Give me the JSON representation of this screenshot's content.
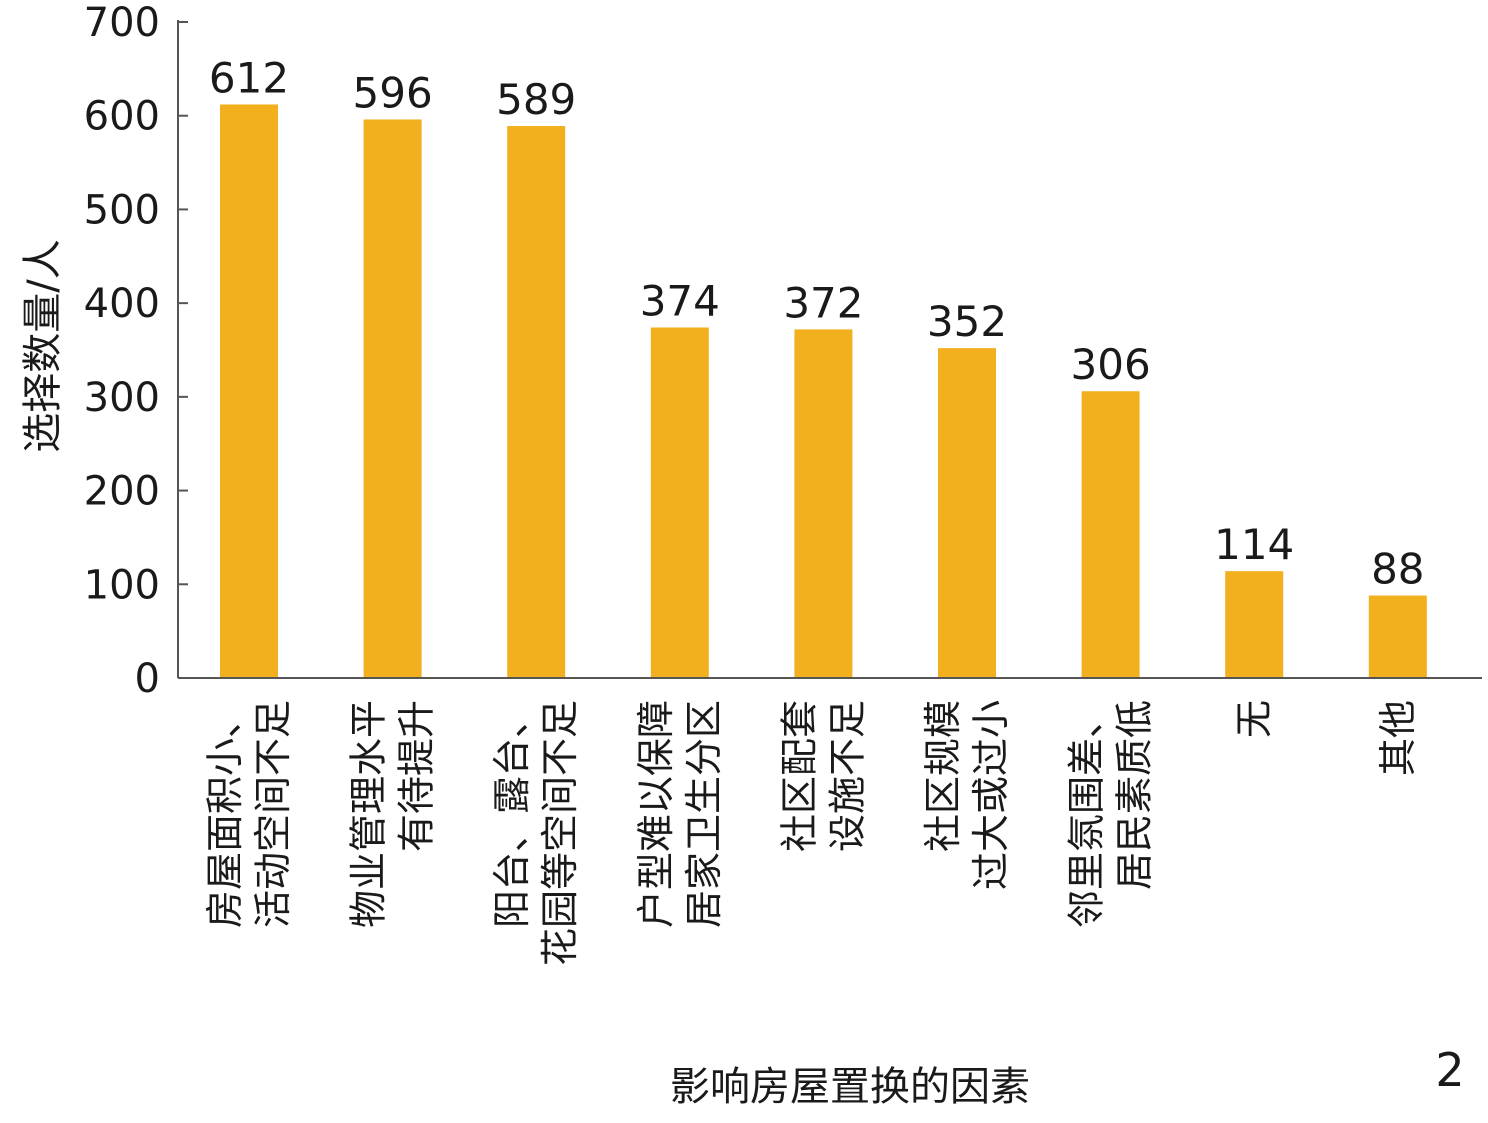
{
  "panel_label": "2",
  "chart_data": {
    "type": "bar",
    "xlabel": "影响房屋置换的因素",
    "ylabel": "选择数量/人",
    "ylim": [
      0,
      700
    ],
    "yticks": [
      0,
      100,
      200,
      300,
      400,
      500,
      600,
      700
    ],
    "grid": false,
    "bar_color": "#F2B01E",
    "categories": [
      [
        "房屋面积小、",
        "活动空间不足"
      ],
      [
        "物业管理水平",
        "有待提升"
      ],
      [
        "阳台、露台、",
        "花园等空间不足"
      ],
      [
        "户型难以保障",
        "居家卫生分区"
      ],
      [
        "社区配套",
        "设施不足"
      ],
      [
        "社区规模",
        "过大或过小"
      ],
      [
        "邻里氛围差、",
        "居民素质低"
      ],
      [
        "无"
      ],
      [
        "其他"
      ]
    ],
    "values": [
      612,
      596,
      589,
      374,
      372,
      352,
      306,
      114,
      88
    ]
  }
}
